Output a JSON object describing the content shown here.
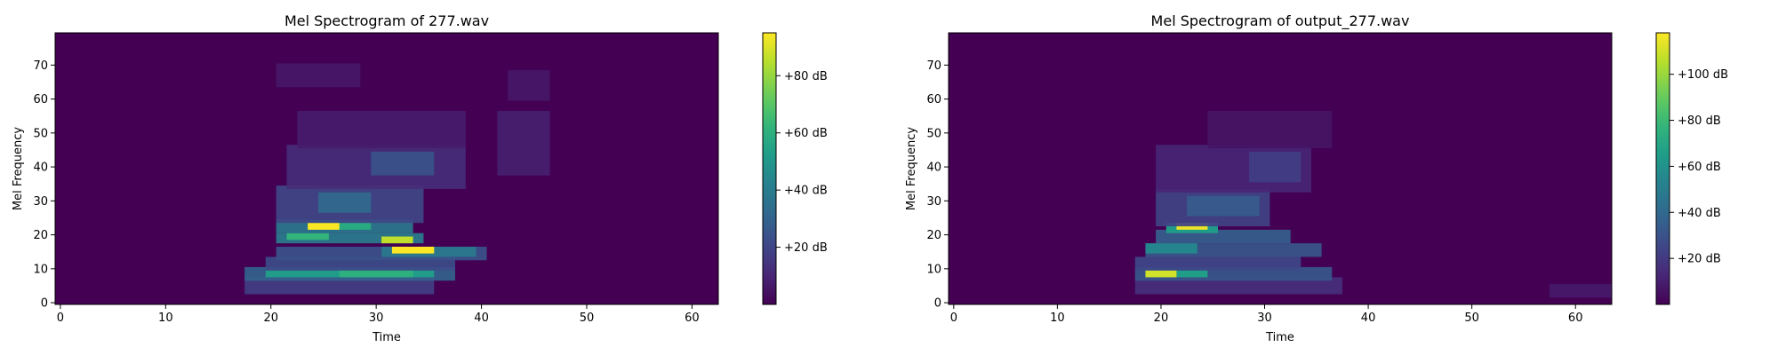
{
  "chart_data": [
    {
      "type": "heatmap",
      "title": "Mel Spectrogram of 277.wav",
      "xlabel": "Time",
      "ylabel": "Mel Frequency",
      "xlim": [
        -0.5,
        62.5
      ],
      "ylim": [
        -0.5,
        79.5
      ],
      "xticks": [
        0,
        10,
        20,
        30,
        40,
        50,
        60
      ],
      "yticks": [
        0,
        10,
        20,
        30,
        40,
        50,
        60,
        70
      ],
      "colormap": "viridis",
      "colorbar": {
        "min": 0,
        "max": 95,
        "ticks": [
          20,
          40,
          60,
          80
        ],
        "tick_format": "+{v} dB"
      },
      "background_db": 0,
      "blobs": [
        {
          "t": [
            18,
            35
          ],
          "f": [
            3,
            7
          ],
          "db": 18
        },
        {
          "t": [
            18,
            37
          ],
          "f": [
            7,
            10
          ],
          "db": 30
        },
        {
          "t": [
            20,
            35
          ],
          "f": [
            8,
            9
          ],
          "db": 52
        },
        {
          "t": [
            27,
            33
          ],
          "f": [
            8,
            9
          ],
          "db": 60
        },
        {
          "t": [
            20,
            37
          ],
          "f": [
            10,
            13
          ],
          "db": 22
        },
        {
          "t": [
            21,
            40
          ],
          "f": [
            13,
            16
          ],
          "db": 24
        },
        {
          "t": [
            31,
            39
          ],
          "f": [
            14,
            16
          ],
          "db": 38
        },
        {
          "t": [
            32,
            35
          ],
          "f": [
            15,
            16
          ],
          "db": 95
        },
        {
          "t": [
            21,
            34
          ],
          "f": [
            18,
            20
          ],
          "db": 40
        },
        {
          "t": [
            22,
            25
          ],
          "f": [
            19,
            20
          ],
          "db": 62
        },
        {
          "t": [
            31,
            33
          ],
          "f": [
            18,
            19
          ],
          "db": 86
        },
        {
          "t": [
            21,
            33
          ],
          "f": [
            21,
            24
          ],
          "db": 38
        },
        {
          "t": [
            24,
            29
          ],
          "f": [
            22,
            23
          ],
          "db": 58
        },
        {
          "t": [
            24,
            26
          ],
          "f": [
            22,
            23
          ],
          "db": 95
        },
        {
          "t": [
            21,
            34
          ],
          "f": [
            24,
            34
          ],
          "db": 20
        },
        {
          "t": [
            25,
            29
          ],
          "f": [
            27,
            32
          ],
          "db": 32
        },
        {
          "t": [
            22,
            38
          ],
          "f": [
            34,
            46
          ],
          "db": 12
        },
        {
          "t": [
            30,
            35
          ],
          "f": [
            38,
            44
          ],
          "db": 24
        },
        {
          "t": [
            23,
            38
          ],
          "f": [
            46,
            56
          ],
          "db": 7
        },
        {
          "t": [
            21,
            28
          ],
          "f": [
            64,
            70
          ],
          "db": 6
        },
        {
          "t": [
            42,
            46
          ],
          "f": [
            38,
            56
          ],
          "db": 8
        },
        {
          "t": [
            43,
            46
          ],
          "f": [
            60,
            68
          ],
          "db": 6
        }
      ]
    },
    {
      "type": "heatmap",
      "title": "Mel Spectrogram of output_277.wav",
      "xlabel": "Time",
      "ylabel": "Mel Frequency",
      "xlim": [
        -0.5,
        63.5
      ],
      "ylim": [
        -0.5,
        79.5
      ],
      "xticks": [
        0,
        10,
        20,
        30,
        40,
        50,
        60
      ],
      "yticks": [
        0,
        10,
        20,
        30,
        40,
        50,
        60,
        70
      ],
      "colormap": "viridis",
      "colorbar": {
        "min": 0,
        "max": 118,
        "ticks": [
          20,
          40,
          60,
          80,
          100
        ],
        "tick_format": "+{v} dB"
      },
      "background_db": 0,
      "blobs": [
        {
          "t": [
            18,
            37
          ],
          "f": [
            3,
            7
          ],
          "db": 16
        },
        {
          "t": [
            18,
            36
          ],
          "f": [
            7,
            10
          ],
          "db": 32
        },
        {
          "t": [
            19,
            24
          ],
          "f": [
            8,
            9
          ],
          "db": 66
        },
        {
          "t": [
            19,
            21
          ],
          "f": [
            8,
            9
          ],
          "db": 110
        },
        {
          "t": [
            18,
            33
          ],
          "f": [
            10,
            13
          ],
          "db": 26
        },
        {
          "t": [
            19,
            35
          ],
          "f": [
            14,
            17
          ],
          "db": 32
        },
        {
          "t": [
            19,
            23
          ],
          "f": [
            15,
            17
          ],
          "db": 54
        },
        {
          "t": [
            20,
            32
          ],
          "f": [
            18,
            21
          ],
          "db": 36
        },
        {
          "t": [
            21,
            25
          ],
          "f": [
            21,
            23
          ],
          "db": 64
        },
        {
          "t": [
            22,
            24
          ],
          "f": [
            22,
            23
          ],
          "db": 115
        },
        {
          "t": [
            20,
            30
          ],
          "f": [
            23,
            33
          ],
          "db": 24
        },
        {
          "t": [
            23,
            29
          ],
          "f": [
            26,
            31
          ],
          "db": 34
        },
        {
          "t": [
            20,
            34
          ],
          "f": [
            33,
            46
          ],
          "db": 12
        },
        {
          "t": [
            29,
            33
          ],
          "f": [
            36,
            44
          ],
          "db": 22
        },
        {
          "t": [
            25,
            36
          ],
          "f": [
            46,
            56
          ],
          "db": 6
        },
        {
          "t": [
            58,
            63
          ],
          "f": [
            2,
            5
          ],
          "db": 8
        }
      ]
    }
  ]
}
